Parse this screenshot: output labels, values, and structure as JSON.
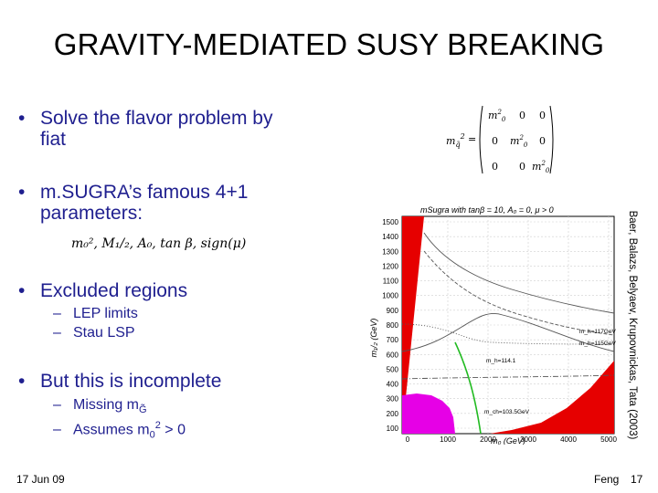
{
  "slide": {
    "title": "GRAVITY-MEDIATED SUSY BREAKING",
    "bullets": {
      "b1_line1": "Solve the flavor problem by",
      "b1_line2": "fiat",
      "b2_line1": "m.SUGRA’s famous 4+1",
      "b2_line2": "parameters:",
      "b3": "Excluded regions",
      "b3_sub1": "LEP limits",
      "b3_sub2": "Stau LSP",
      "b4": "But this is incomplete",
      "b4_sub1": "Missing m",
      "b4_sub1_sub": "G̃",
      "b4_sub2_pre": "Assumes m",
      "b4_sub2_sub": "0",
      "b4_sub2_sup": "2",
      "b4_sub2_post": " > 0",
      "bullet_char": "•",
      "dash_char": "–"
    },
    "equations": {
      "matrix_lhs": "m",
      "matrix_lhs_sub": "q̃",
      "matrix_lhs_sup": "2",
      "matrix_m": "m",
      "zero": "0",
      "params_text": "m₀², M₁/₂, A₀, tan β, sign(μ)"
    },
    "figure": {
      "plot_title": "mSugra with tanβ = 10, A₀ = 0, μ > 0",
      "ylabel": "m₁/₂ (GeV)",
      "xlabel": "m₀ (GeV)",
      "credit": "Baer, Balazs, Belyaev, Krupovnickas, Tata (2003)",
      "y_ticks": [
        "1500",
        "1400",
        "1300",
        "1200",
        "1100",
        "1000",
        "900",
        "800",
        "700",
        "600",
        "500",
        "400",
        "300",
        "200",
        "100"
      ],
      "x_ticks": [
        "0",
        "1000",
        "2000",
        "3000",
        "4000",
        "5000"
      ],
      "contour_labels": [
        "m_h=117GeV",
        "m_h=115GeV",
        "m_h=114.1",
        "m_ch=103.5GeV"
      ]
    },
    "footer": {
      "date": "17 Jun 09",
      "author": "Feng",
      "page": "17"
    },
    "colors": {
      "text_blue": "#1f1f8f",
      "excluded_red": "#e60000",
      "excluded_magenta": "#e600e6",
      "contour_green": "#22bb22"
    }
  }
}
